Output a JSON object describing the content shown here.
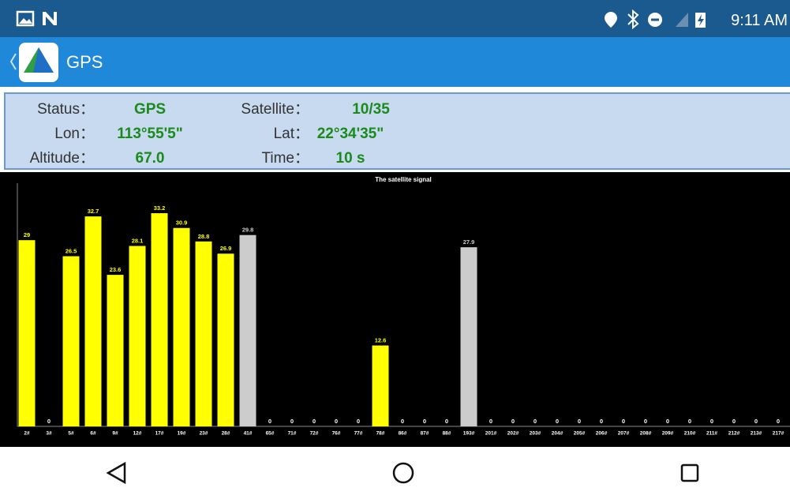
{
  "status_bar": {
    "time": "9:11 AM"
  },
  "app_bar": {
    "title": "GPS"
  },
  "info": {
    "rows": [
      [
        {
          "label": "Status：",
          "value": "GPS"
        },
        {
          "label": "Satellite：",
          "value": "10/35"
        }
      ],
      [
        {
          "label": "Lon：",
          "value": "113°55'5\""
        },
        {
          "label": "Lat：",
          "value": "22°34'35\""
        }
      ],
      [
        {
          "label": "Altitude：",
          "value": "67.0"
        },
        {
          "label": "Time：",
          "value": "10 s"
        }
      ]
    ]
  },
  "chart_data": {
    "type": "bar",
    "title": "The satellite signal",
    "categories": [
      "2#",
      "3#",
      "5#",
      "6#",
      "9#",
      "12#",
      "17#",
      "19#",
      "23#",
      "28#",
      "41#",
      "65#",
      "71#",
      "72#",
      "76#",
      "77#",
      "78#",
      "86#",
      "87#",
      "88#",
      "193#",
      "201#",
      "202#",
      "203#",
      "204#",
      "205#",
      "206#",
      "207#",
      "208#",
      "209#",
      "210#",
      "211#",
      "212#",
      "213#",
      "217#"
    ],
    "values": [
      29,
      0,
      26.5,
      32.7,
      23.6,
      28.1,
      33.2,
      30.9,
      28.8,
      26.9,
      29.8,
      0,
      0,
      0,
      0,
      0,
      12.6,
      0,
      0,
      0,
      27.9,
      0,
      0,
      0,
      0,
      0,
      0,
      0,
      0,
      0,
      0,
      0,
      0,
      0,
      0
    ],
    "colors": [
      "#ffff00",
      "#ffff00",
      "#ffff00",
      "#ffff00",
      "#ffff00",
      "#ffff00",
      "#ffff00",
      "#ffff00",
      "#ffff00",
      "#ffff00",
      "#cccccc",
      "#ffff00",
      "#ffff00",
      "#ffff00",
      "#ffff00",
      "#ffff00",
      "#ffff00",
      "#ffff00",
      "#ffff00",
      "#ffff00",
      "#cccccc",
      "#ffff00",
      "#ffff00",
      "#ffff00",
      "#ffff00",
      "#ffff00",
      "#ffff00",
      "#ffff00",
      "#ffff00",
      "#ffff00",
      "#ffff00",
      "#ffff00",
      "#ffff00",
      "#ffff00",
      "#ffff00"
    ],
    "ylim": [
      0,
      38
    ]
  }
}
